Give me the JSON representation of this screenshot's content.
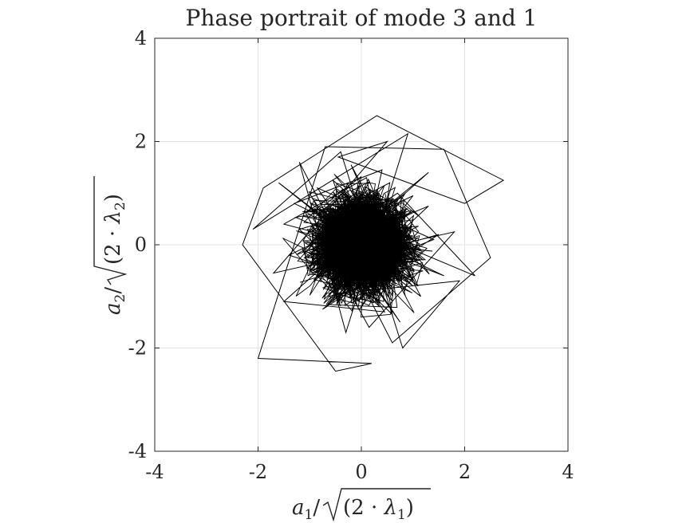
{
  "chart_data": {
    "type": "line",
    "title": "Phase portrait of mode 3 and 1",
    "xlabel": "a_1/√(2·λ_1)",
    "ylabel": "a_2/√(2·λ_2)",
    "xlim": [
      -4,
      4
    ],
    "ylim": [
      -4,
      4
    ],
    "xticks": [
      -4,
      -2,
      0,
      2,
      4
    ],
    "yticks": [
      -4,
      -2,
      0,
      2,
      4
    ],
    "xtick_labels": [
      "-4",
      "-2",
      "0",
      "2",
      "4"
    ],
    "ytick_labels": [
      "-4",
      "-2",
      "0",
      "2",
      "4"
    ],
    "grid": true,
    "series": [
      {
        "color": "#000000",
        "description": "dense chaotic trajectory, approximately Gaussian around origin",
        "x": [
          0.0,
          0.45,
          -0.3,
          0.8,
          -0.9,
          0.2,
          1.1,
          -0.6,
          0.35,
          -1.2,
          0.7,
          -0.15,
          1.4,
          -0.85,
          0.5,
          -0.4,
          0.95,
          -1.5,
          0.1,
          0.6,
          -0.7,
          1.3,
          -0.25,
          0.85,
          -1.05,
          0.3,
          -0.55,
          1.2,
          0.05,
          -0.95,
          0.75,
          -0.35,
          1.6,
          -1.3,
          0.4,
          -0.1,
          0.9,
          -0.65,
          1.0,
          -1.4,
          0.25,
          0.55,
          -0.8,
          1.15,
          -0.2,
          0.65,
          -1.1,
          0.15,
          1.8,
          -1.7,
          0.5,
          -0.45,
          2.0,
          2.75,
          0.3,
          -1.9,
          -2.3,
          -0.5,
          0.2,
          -2.0,
          -0.7,
          1.6,
          2.5,
          0.6,
          -1.2,
          -0.3,
          0.9,
          -2.1,
          -0.4,
          0.8,
          1.9,
          0.0,
          -0.6,
          1.3,
          -1.5,
          0.45,
          -0.9,
          2.2,
          0.7,
          -0.2,
          1.0,
          -1.6,
          0.35,
          -0.75,
          1.5,
          -1.0,
          0.1
        ],
        "y": [
          0.0,
          -0.6,
          0.7,
          0.2,
          -0.35,
          1.05,
          -0.8,
          0.45,
          -1.2,
          0.3,
          0.85,
          -0.5,
          0.1,
          1.1,
          -0.95,
          0.6,
          -0.25,
          0.4,
          1.3,
          -1.35,
          -0.1,
          0.75,
          -0.7,
          1.0,
          -0.45,
          -1.05,
          1.25,
          -0.3,
          0.55,
          0.9,
          -1.5,
          0.15,
          -0.6,
          0.8,
          1.45,
          -0.85,
          0.35,
          -1.15,
          0.95,
          -0.2,
          -0.75,
          1.2,
          0.5,
          -1.0,
          1.55,
          -0.4,
          0.65,
          -1.6,
          0.25,
          -0.55,
          2.0,
          1.7,
          0.8,
          1.25,
          2.5,
          1.1,
          0.0,
          -2.45,
          -2.3,
          -2.2,
          1.9,
          1.85,
          -0.25,
          -1.9,
          1.6,
          -1.7,
          2.15,
          0.3,
          1.8,
          -2.0,
          -0.7,
          -0.9,
          -0.15,
          1.4,
          -1.1,
          -1.3,
          0.7,
          -0.6,
          1.0,
          0.4,
          -0.8,
          1.2,
          -0.35,
          -1.25,
          0.2,
          -0.5,
          0.6
        ]
      }
    ]
  }
}
